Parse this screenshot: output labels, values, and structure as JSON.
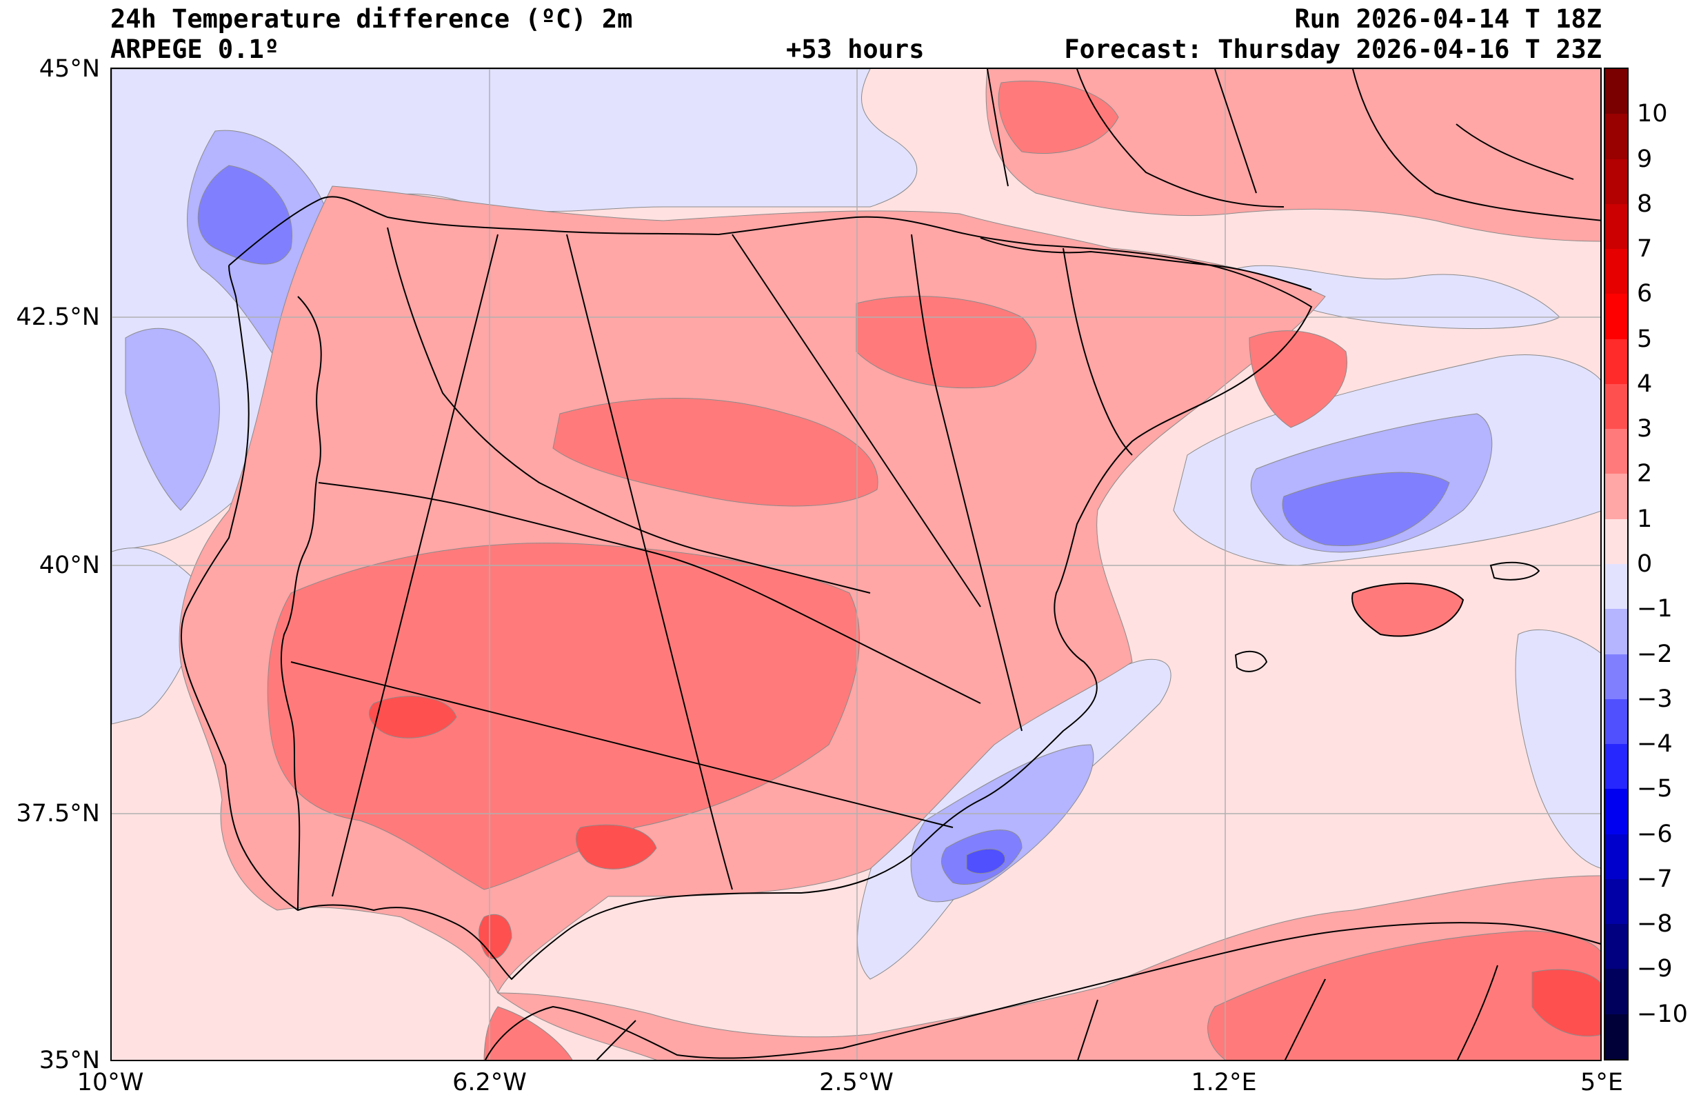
{
  "header": {
    "title": "24h Temperature difference (ºC) 2m",
    "model": "ARPEGE 0.1º",
    "lead_time": "+53 hours",
    "run": "Run 2026-04-14 T 18Z",
    "forecast": "Forecast: Thursday 2026-04-16 T 23Z"
  },
  "axes": {
    "lat_labels": [
      "45°N",
      "42.5°N",
      "40°N",
      "37.5°N",
      "35°N"
    ],
    "lon_labels": [
      "10°W",
      "6.2°W",
      "2.5°W",
      "1.2°E",
      "5°E"
    ],
    "lat_range": [
      35,
      45
    ],
    "lon_range": [
      -10,
      5
    ]
  },
  "colorbar": {
    "labels": [
      "10",
      "9",
      "8",
      "7",
      "6",
      "5",
      "4",
      "3",
      "2",
      "1",
      "0",
      "−1",
      "−2",
      "−3",
      "−4",
      "−5",
      "−6",
      "−7",
      "−8",
      "−9",
      "−10"
    ],
    "levels": [
      11,
      10,
      9,
      8,
      7,
      6,
      5,
      4,
      3,
      2,
      1,
      0,
      -1,
      -2,
      -3,
      -4,
      -5,
      -6,
      -7,
      -8,
      -9,
      -10,
      -11
    ],
    "colors": [
      "#7a0000",
      "#990000",
      "#b30000",
      "#cc0000",
      "#e60000",
      "#ff0000",
      "#ff2a2a",
      "#ff5050",
      "#ff7b7b",
      "#ffa6a6",
      "#ffe1e1",
      "#e2e2ff",
      "#b4b4ff",
      "#8080ff",
      "#5050ff",
      "#2626ff",
      "#0000f0",
      "#0000cc",
      "#0000a6",
      "#000080",
      "#00005c",
      "#000038"
    ]
  },
  "field": {
    "background_sea": "#ffe1e1",
    "cool_sea": "#e2e2ff",
    "land_warm": "#ffa6a6",
    "land_hot": "#ff7b7b",
    "hotspot": "#ff5050",
    "cold_1": "#b4b4ff",
    "cold_2": "#8080ff",
    "cold_3": "#5050ff",
    "border_color": "#000000",
    "grid_color": "#b0b0b0"
  }
}
